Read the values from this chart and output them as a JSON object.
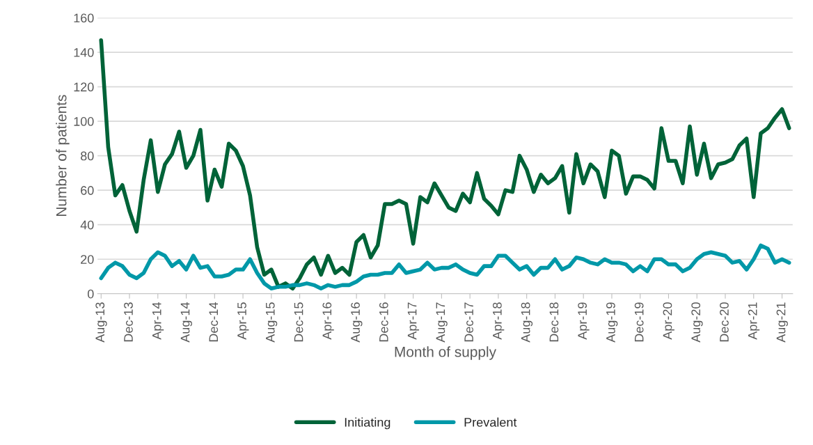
{
  "chart_data": {
    "type": "line",
    "xlabel": "Month of supply",
    "ylabel": "Number of patients",
    "categories": [
      "Aug-13",
      null,
      null,
      null,
      "Dec-13",
      null,
      null,
      null,
      "Apr-14",
      null,
      null,
      null,
      "Aug-14",
      null,
      null,
      null,
      "Dec-14",
      null,
      null,
      null,
      "Apr-15",
      null,
      null,
      null,
      "Aug-15",
      null,
      null,
      null,
      "Dec-15",
      null,
      null,
      null,
      "Apr-16",
      null,
      null,
      null,
      "Aug-16",
      null,
      null,
      null,
      "Dec-16",
      null,
      null,
      null,
      "Apr-17",
      null,
      null,
      null,
      "Aug-17",
      null,
      null,
      null,
      "Dec-17",
      null,
      null,
      null,
      "Apr-18",
      null,
      null,
      null,
      "Aug-18",
      null,
      null,
      null,
      "Dec-18",
      null,
      null,
      null,
      "Apr-19",
      null,
      null,
      null,
      "Aug-19",
      null,
      null,
      null,
      "Dec-19",
      null,
      null,
      null,
      "Apr-20",
      null,
      null,
      null,
      "Aug-20",
      null,
      null,
      null,
      "Dec-20",
      null,
      null,
      null,
      "Apr-21",
      null,
      null,
      null,
      "Aug-21",
      null
    ],
    "series": [
      {
        "name": "Initiating",
        "color": "#006338",
        "values": [
          147,
          85,
          57,
          63,
          48,
          36,
          66,
          89,
          59,
          75,
          81,
          94,
          73,
          80,
          95,
          54,
          72,
          62,
          87,
          83,
          74,
          57,
          27,
          11,
          14,
          4,
          6,
          3,
          9,
          17,
          21,
          11,
          22,
          12,
          15,
          11,
          30,
          34,
          21,
          28,
          52,
          52,
          54,
          52,
          29,
          56,
          53,
          64,
          57,
          50,
          48,
          58,
          53,
          70,
          55,
          51,
          46,
          60,
          59,
          80,
          72,
          59,
          69,
          64,
          67,
          74,
          47,
          81,
          64,
          75,
          71,
          56,
          83,
          80,
          58,
          68,
          68,
          66,
          61,
          96,
          77,
          77,
          64,
          97,
          69,
          87,
          67,
          75,
          76,
          78,
          86,
          90,
          56,
          93,
          96,
          102,
          107,
          96
        ]
      },
      {
        "name": "Prevalent",
        "color": "#0098a8",
        "values": [
          9,
          15,
          18,
          16,
          11,
          9,
          12,
          20,
          24,
          22,
          16,
          19,
          14,
          22,
          15,
          16,
          10,
          10,
          11,
          14,
          14,
          20,
          12,
          6,
          3,
          4,
          4,
          5,
          5,
          6,
          5,
          3,
          5,
          4,
          5,
          5,
          7,
          10,
          11,
          11,
          12,
          12,
          17,
          12,
          13,
          14,
          18,
          14,
          15,
          15,
          17,
          14,
          12,
          11,
          16,
          16,
          22,
          22,
          18,
          14,
          16,
          11,
          15,
          15,
          20,
          14,
          16,
          21,
          20,
          18,
          17,
          20,
          18,
          18,
          17,
          13,
          16,
          13,
          20,
          20,
          17,
          17,
          13,
          15,
          20,
          23,
          24,
          23,
          22,
          18,
          19,
          14,
          20,
          28,
          26,
          18,
          20,
          18
        ]
      }
    ],
    "ylim": [
      0,
      160
    ],
    "yticks": [
      0,
      20,
      40,
      60,
      80,
      100,
      120,
      140,
      160
    ],
    "grid": "y",
    "legend": "bottom",
    "line_style": "solid",
    "marker": "none"
  }
}
